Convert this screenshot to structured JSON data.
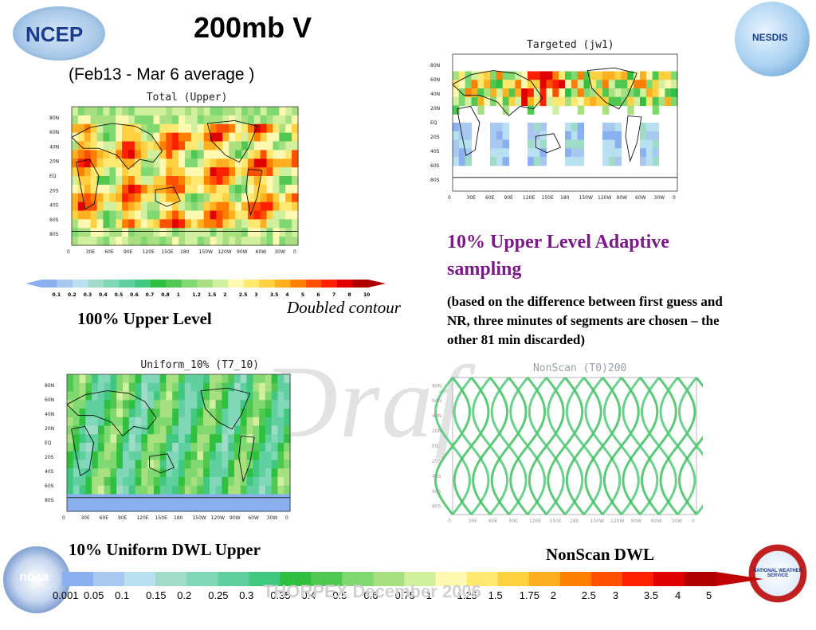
{
  "header": {
    "title": "200mb  V",
    "subtitle": "(Feb13 - Mar 6 average )"
  },
  "logos": {
    "left": "NCEP",
    "nesdis": "NESDIS",
    "noaa": "noaa",
    "nws": "NATIONAL WEATHER SERVICE"
  },
  "panels": {
    "total": {
      "title": "Total   (Upper)",
      "caption": "100% Upper Level"
    },
    "targeted": {
      "title": "Targeted   (jw1)"
    },
    "uniform": {
      "title": "Uniform_10%    (T7_10)",
      "caption": "10% Uniform DWL Upper"
    },
    "nonscan": {
      "title": "NonScan   (T0)200",
      "caption": "NonScan DWL"
    }
  },
  "axes": {
    "lat": [
      "80N",
      "60N",
      "40N",
      "20N",
      "EQ",
      "20S",
      "40S",
      "60S",
      "80S"
    ],
    "lon": [
      "0",
      "30E",
      "60E",
      "90E",
      "120E",
      "150E",
      "180",
      "150W",
      "120W",
      "90W",
      "60W",
      "30W",
      "0"
    ]
  },
  "annotations": {
    "doubled_contour": "Doubled contour",
    "adaptive_title": "10% Upper Level Adaptive sampling",
    "adaptive_note": "(based on the difference between first guess and NR, three minutes of segments are chosen – the other 81 min discarded)",
    "watermark": "Draft",
    "watermark_footer": "THORPEX December 2006"
  },
  "colorbar_small": {
    "labels": [
      "0.1",
      "0.2",
      "0.3",
      "0.4",
      "0.5",
      "0.6",
      "0.7",
      "0.8",
      "1",
      "1.2",
      "1.5",
      "2",
      "2.5",
      "3",
      "3.5",
      "4",
      "5",
      "6",
      "7",
      "8",
      "10"
    ]
  },
  "colorbar_big": {
    "labels": [
      "0.001",
      "0.05",
      "0.1",
      "0.15",
      "0.2",
      "0.25",
      "0.3",
      "0.35",
      "0.4",
      "0.5",
      "0.6",
      "0.75",
      "1",
      "1.25",
      "1.5",
      "1.75",
      "2",
      "2.5",
      "3",
      "3.5",
      "4",
      "5"
    ]
  },
  "colors": {
    "scale": [
      "#8ab0f0",
      "#a8c8f0",
      "#b8e0f0",
      "#9fdcc8",
      "#80d8b8",
      "#60d0a0",
      "#40c880",
      "#30c040",
      "#50c850",
      "#80d870",
      "#a8e080",
      "#d0f0a0",
      "#fff8b0",
      "#ffe870",
      "#ffd040",
      "#ffb020",
      "#ff8000",
      "#ff5000",
      "#ff2000",
      "#e00000",
      "#b00000"
    ],
    "purple": "#7a1a86"
  }
}
